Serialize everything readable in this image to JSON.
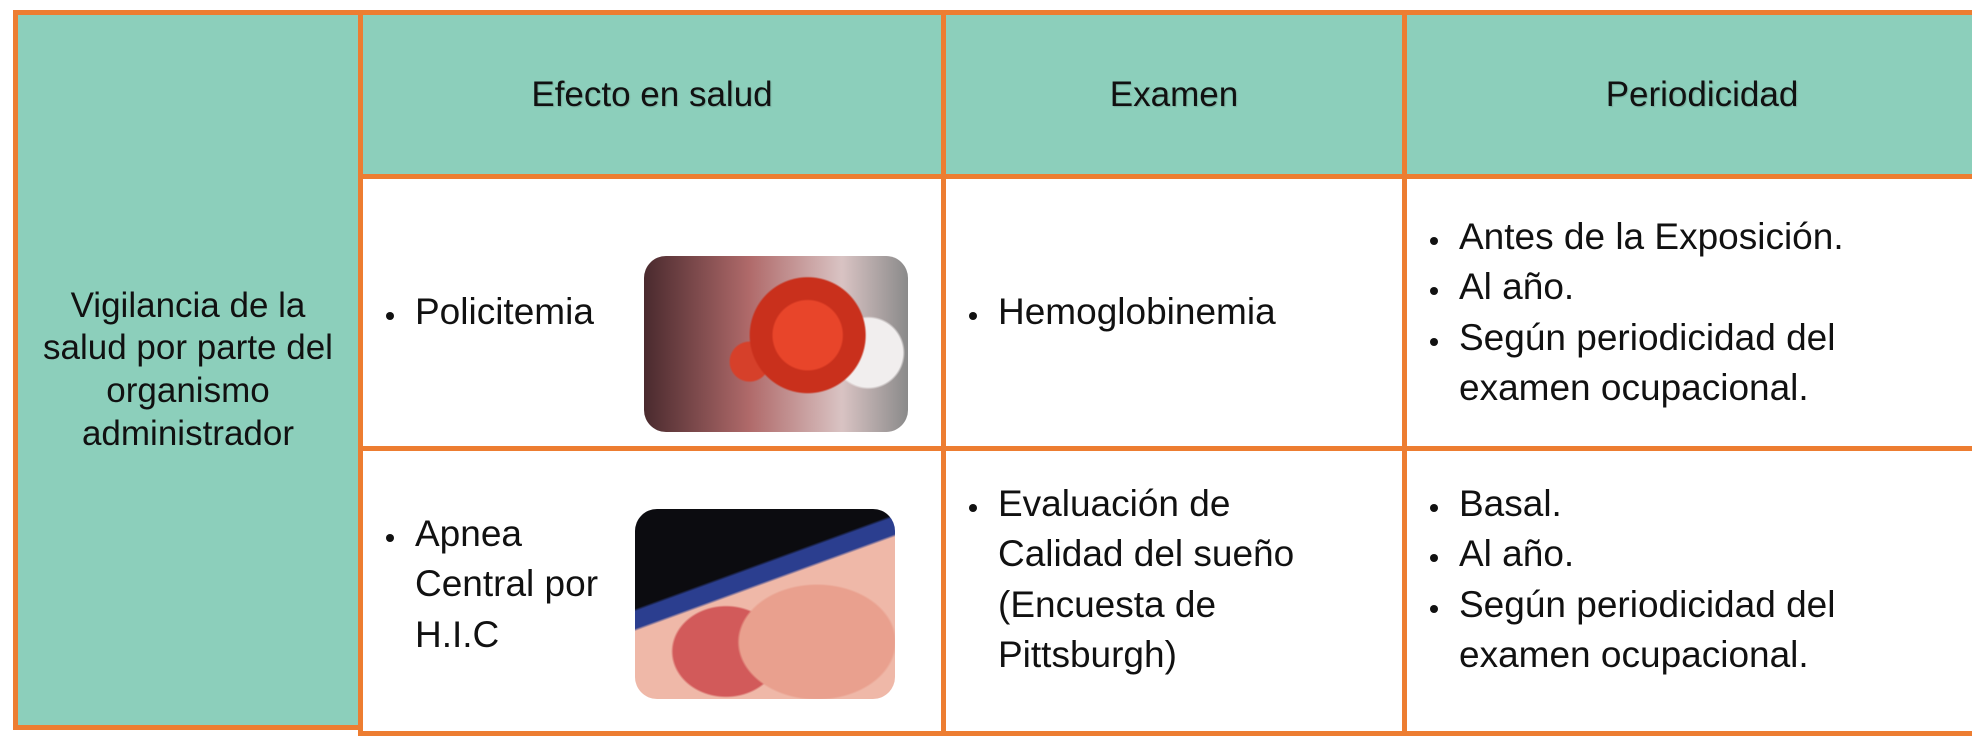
{
  "table": {
    "corner_label": "Vigilancia de la salud por parte del organismo administrador",
    "header": [
      "Efecto en salud",
      "Examen",
      "Periodicidad"
    ],
    "rows": [
      {
        "effect": "Policitemia",
        "exam": [
          "Hemoglobinemia"
        ],
        "periodicity": [
          "Antes de la Exposición.",
          "Al año.",
          "Según periodicidad del examen ocupacional."
        ]
      },
      {
        "effect": "Apnea Central por H.I.C",
        "exam": [
          "Evaluación de Calidad del sueño (Encuesta de Pittsburgh)"
        ],
        "periodicity": [
          "Basal.",
          "Al año.",
          "Según periodicidad del examen ocupacional."
        ]
      }
    ]
  }
}
